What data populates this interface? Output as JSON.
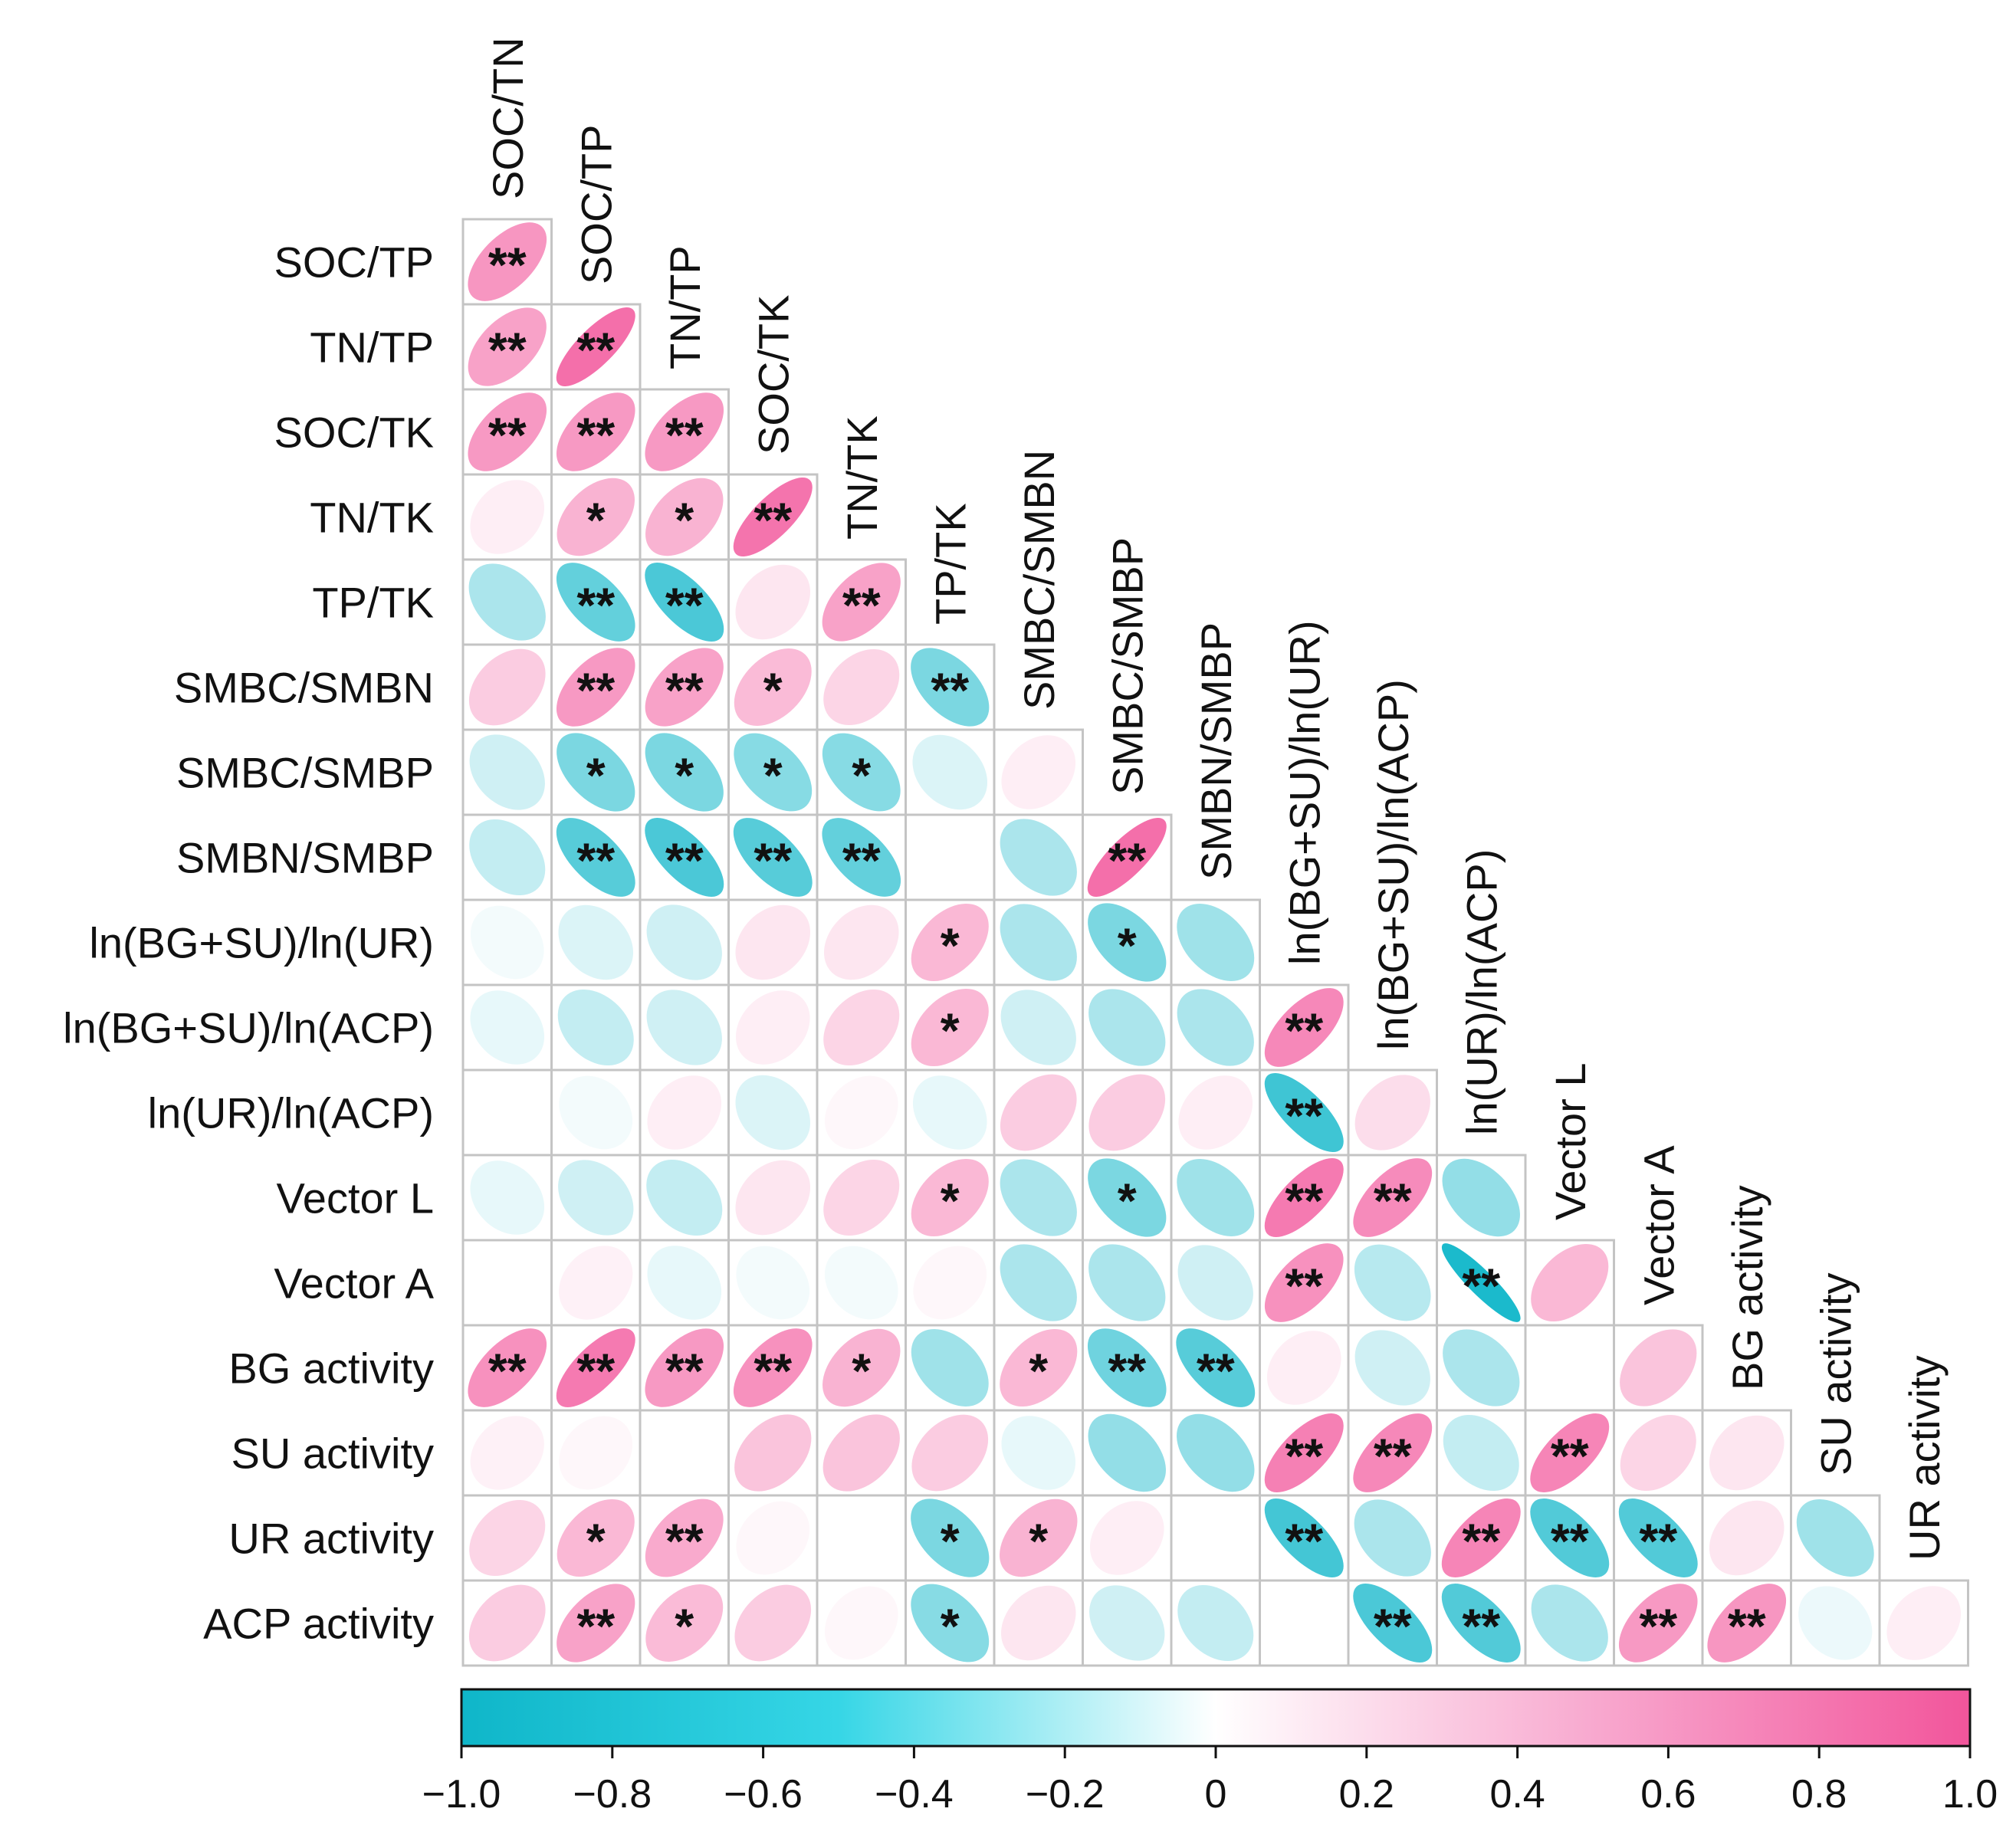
{
  "chart_data": {
    "type": "heatmap",
    "subtype": "lower-triangle correlation matrix with ellipse glyphs",
    "variables": [
      "SOC/TN",
      "SOC/TP",
      "TN/TP",
      "SOC/TK",
      "TN/TK",
      "TP/TK",
      "SMBC/SMBN",
      "SMBC/SMBP",
      "SMBN/SMBP",
      "ln(BG+SU)/ln(UR)",
      "ln(BG+SU)/ln(ACP)",
      "ln(UR)/ln(ACP)",
      "Vector L",
      "Vector A",
      "BG activity",
      "SU activity",
      "UR activity",
      "ACP activity"
    ],
    "row_labels": [
      "SOC/TP",
      "TN/TP",
      "SOC/TK",
      "TN/TK",
      "TP/TK",
      "SMBC/SMBN",
      "SMBC/SMBP",
      "SMBN/SMBP",
      "ln(BG+SU)/ln(UR)",
      "ln(BG+SU)/ln(ACP)",
      "ln(UR)/ln(ACP)",
      "Vector L",
      "Vector A",
      "BG activity",
      "SU activity",
      "UR activity",
      "ACP activity"
    ],
    "column_labels": [
      "SOC/TN",
      "SOC/TP",
      "TN/TP",
      "SOC/TK",
      "TN/TK",
      "TP/TK",
      "SMBC/SMBN",
      "SMBC/SMBP",
      "SMBN/SMBP",
      "ln(BG+SU)/ln(UR)",
      "ln(BG+SU)/ln(ACP)",
      "ln(UR)/ln(ACP)",
      "Vector L",
      "Vector A",
      "BG activity",
      "SU activity",
      "UR activity"
    ],
    "correlations": [
      [
        0.62
      ],
      [
        0.55,
        0.85
      ],
      [
        0.6,
        0.6,
        0.6
      ],
      [
        0.1,
        0.45,
        0.45,
        0.82
      ],
      [
        -0.35,
        -0.65,
        -0.75,
        0.15,
        0.55
      ],
      [
        0.3,
        0.6,
        0.55,
        0.4,
        0.25,
        -0.55
      ],
      [
        -0.2,
        -0.55,
        -0.55,
        -0.5,
        -0.5,
        -0.15,
        0.1
      ],
      [
        -0.25,
        -0.7,
        -0.75,
        -0.7,
        -0.65,
        0.0,
        -0.35,
        0.85
      ],
      [
        -0.05,
        -0.15,
        -0.2,
        0.15,
        0.15,
        0.42,
        -0.35,
        -0.55,
        -0.4
      ],
      [
        -0.1,
        -0.25,
        -0.2,
        0.1,
        0.25,
        0.42,
        -0.2,
        -0.35,
        -0.35,
        0.7
      ],
      [
        0.0,
        -0.05,
        0.1,
        -0.15,
        0.05,
        -0.1,
        0.3,
        0.3,
        0.1,
        -0.8,
        0.2
      ],
      [
        -0.1,
        -0.2,
        -0.25,
        0.15,
        0.25,
        0.42,
        -0.35,
        -0.55,
        -0.4,
        0.78,
        0.68,
        -0.45
      ],
      [
        0.0,
        0.08,
        -0.1,
        -0.05,
        -0.05,
        0.05,
        -0.35,
        -0.35,
        -0.2,
        0.65,
        -0.3,
        -0.95,
        0.42
      ],
      [
        0.65,
        0.78,
        0.6,
        0.65,
        0.45,
        -0.4,
        0.42,
        -0.6,
        -0.7,
        0.1,
        -0.2,
        -0.35,
        0.0,
        0.35
      ],
      [
        0.08,
        0.05,
        0.0,
        0.35,
        0.35,
        0.3,
        -0.1,
        -0.45,
        -0.45,
        0.75,
        0.7,
        -0.25,
        0.72,
        0.25,
        0.15
      ],
      [
        0.25,
        0.42,
        0.5,
        0.05,
        0.0,
        -0.55,
        0.45,
        0.1,
        0.0,
        -0.78,
        -0.35,
        0.72,
        -0.72,
        -0.72,
        0.15,
        -0.4
      ],
      [
        0.3,
        0.55,
        0.4,
        0.3,
        0.05,
        -0.5,
        0.15,
        -0.2,
        -0.25,
        0.0,
        -0.75,
        -0.72,
        -0.35,
        0.6,
        0.62,
        -0.08,
        0.1
      ]
    ],
    "significance": [
      [
        "**"
      ],
      [
        "**",
        "**"
      ],
      [
        "**",
        "**",
        "**"
      ],
      [
        "",
        "*",
        "*",
        "**"
      ],
      [
        "",
        "**",
        "**",
        "",
        "**"
      ],
      [
        "",
        "**",
        "**",
        "*",
        "",
        "**"
      ],
      [
        "",
        "*",
        "*",
        "*",
        "*",
        "",
        ""
      ],
      [
        "",
        "**",
        "**",
        "**",
        "**",
        "",
        "",
        "**"
      ],
      [
        "",
        "",
        "",
        "",
        "",
        "*",
        "",
        "*",
        ""
      ],
      [
        "",
        "",
        "",
        "",
        "",
        "*",
        "",
        "",
        "",
        "**"
      ],
      [
        "",
        "",
        "",
        "",
        "",
        "",
        "",
        "",
        "",
        "**",
        ""
      ],
      [
        "",
        "",
        "",
        "",
        "",
        "*",
        "",
        "*",
        "",
        "**",
        "**",
        ""
      ],
      [
        "",
        "",
        "",
        "",
        "",
        "",
        "",
        "",
        "",
        "**",
        "",
        "**",
        ""
      ],
      [
        "**",
        "**",
        "**",
        "**",
        "*",
        "",
        "*",
        "**",
        "**",
        "",
        "",
        "",
        "",
        ""
      ],
      [
        "",
        "",
        "",
        "",
        "",
        "",
        "",
        "",
        "",
        "**",
        "**",
        "",
        "**",
        "",
        ""
      ],
      [
        "",
        "*",
        "**",
        "",
        "",
        "*",
        "*",
        "",
        "",
        "**",
        "",
        "**",
        "**",
        "**",
        "",
        ""
      ],
      [
        "",
        "**",
        "*",
        "",
        "",
        "*",
        "",
        "",
        "",
        "",
        "**",
        "**",
        "",
        "**",
        "**",
        "",
        ""
      ]
    ],
    "colorbar": {
      "range": [
        -1.0,
        1.0
      ],
      "ticks": [
        "−1.0",
        "−0.8",
        "−0.6",
        "−0.4",
        "−0.2",
        "0",
        "0.2",
        "0.4",
        "0.6",
        "0.8",
        "1.0"
      ],
      "negative_color": "#0fb6c9",
      "mid_color": "#ffffff",
      "positive_color": "#f2559b"
    }
  }
}
